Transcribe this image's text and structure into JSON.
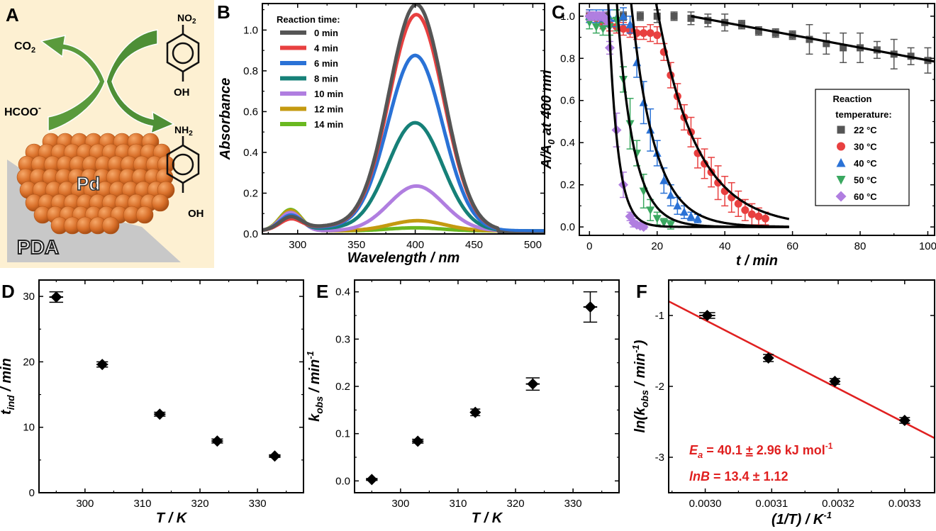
{
  "figure": {
    "panels": [
      "A",
      "B",
      "C",
      "D",
      "E",
      "F"
    ]
  },
  "schematic": {
    "letter": "A",
    "labels": {
      "co2": "CO",
      "co2_sub": "2",
      "formate": "HCOO",
      "formate_sup": "-",
      "nitro": "NO",
      "nitro_sub": "2",
      "amine": "NH",
      "amine_sub": "2",
      "oh_top": "OH",
      "oh_bottom": "OH",
      "pd": "Pd",
      "pda": "PDA"
    },
    "colors": {
      "background": "#fdf0d2",
      "arrow": "#5a9a3c",
      "sphere": "#d9702a",
      "substrate": "#bfbfbf"
    }
  },
  "chart_data": [
    {
      "panel": "B",
      "type": "line",
      "title": "",
      "xlabel": "Wavelength / nm",
      "ylabel": "Absorbance",
      "xlim": [
        270,
        510
      ],
      "ylim": [
        0,
        1.13
      ],
      "xticks": [
        300,
        350,
        400,
        450,
        500
      ],
      "yticks": [
        0.0,
        0.2,
        0.4,
        0.6,
        0.8,
        1.0
      ],
      "ytick_labels": [
        "0.0",
        "0.2",
        "0.4",
        "0.6",
        "0.8",
        "1.0"
      ],
      "legend_title": "Reaction time:",
      "legend_position": "top-left",
      "series": [
        {
          "name": "0 min",
          "color": "#555555",
          "peak": 1.11,
          "peak_x": 401,
          "shoulder300": 0.06
        },
        {
          "name": "4 min",
          "color": "#e84040",
          "peak": 1.06,
          "peak_x": 401,
          "shoulder300": 0.05
        },
        {
          "name": "6 min",
          "color": "#2a72d6",
          "peak": 0.86,
          "peak_x": 400,
          "shoulder300": 0.07
        },
        {
          "name": "8 min",
          "color": "#168078",
          "peak": 0.53,
          "peak_x": 400,
          "shoulder300": 0.07
        },
        {
          "name": "10 min",
          "color": "#b07ee0",
          "peak": 0.22,
          "peak_x": 401,
          "shoulder300": 0.09
        },
        {
          "name": "12 min",
          "color": "#c49a10",
          "peak": 0.05,
          "peak_x": 402,
          "shoulder300": 0.1
        },
        {
          "name": "14 min",
          "color": "#6ab820",
          "peak": 0.015,
          "peak_x": 400,
          "shoulder300": 0.105
        }
      ]
    },
    {
      "panel": "C",
      "type": "scatter",
      "xlabel": "t / min",
      "ylabel": "A/A0 at 400 nm",
      "xlim": [
        -3,
        102
      ],
      "ylim": [
        -0.04,
        1.06
      ],
      "xticks": [
        0,
        20,
        40,
        60,
        80,
        100
      ],
      "yticks": [
        0.0,
        0.2,
        0.4,
        0.6,
        0.8,
        1.0
      ],
      "ytick_labels": [
        "0.0",
        "0.2",
        "0.4",
        "0.6",
        "0.8",
        "1.0"
      ],
      "legend_title": [
        "Reaction",
        "temperature:"
      ],
      "legend_position": "right",
      "series": [
        {
          "name": "22 °C",
          "marker": "square",
          "color": "#555555",
          "x": [
            0,
            5,
            10,
            15,
            20,
            25,
            30,
            35,
            40,
            45,
            50,
            55,
            60,
            65,
            70,
            75,
            80,
            85,
            90,
            95,
            100
          ],
          "y": [
            1.0,
            1.0,
            1.0,
            1.0,
            1.0,
            1.0,
            0.99,
            0.98,
            0.97,
            0.96,
            0.93,
            0.92,
            0.91,
            0.89,
            0.87,
            0.85,
            0.85,
            0.84,
            0.82,
            0.81,
            0.79
          ],
          "err": [
            0.02,
            0.02,
            0.02,
            0.02,
            0.03,
            0.02,
            0.03,
            0.03,
            0.04,
            0.02,
            0.02,
            0.02,
            0.02,
            0.07,
            0.05,
            0.07,
            0.07,
            0.04,
            0.07,
            0.04,
            0.06
          ],
          "fit": {
            "type": "linear",
            "x0": 30,
            "x1": 102,
            "y0": 1.0,
            "y1": 0.785
          }
        },
        {
          "name": "30 °C",
          "marker": "circle",
          "color": "#e84040",
          "x": [
            0,
            2,
            4,
            6,
            8,
            10,
            12,
            14,
            16,
            18,
            20,
            22,
            24,
            26,
            28,
            30,
            32,
            34,
            36,
            38,
            40,
            42,
            44,
            46,
            48,
            50,
            52
          ],
          "y": [
            1.0,
            0.99,
            0.97,
            0.96,
            0.95,
            0.94,
            0.93,
            0.92,
            0.92,
            0.92,
            0.91,
            0.83,
            0.72,
            0.62,
            0.52,
            0.45,
            0.35,
            0.3,
            0.26,
            0.21,
            0.17,
            0.14,
            0.11,
            0.08,
            0.06,
            0.05,
            0.04
          ],
          "err": [
            0.03,
            0.03,
            0.03,
            0.03,
            0.03,
            0.03,
            0.03,
            0.03,
            0.03,
            0.04,
            0.04,
            0.04,
            0.06,
            0.06,
            0.06,
            0.07,
            0.07,
            0.07,
            0.07,
            0.08,
            0.07,
            0.07,
            0.06,
            0.05,
            0.05,
            0.04,
            0.03
          ],
          "fit": {
            "type": "exp",
            "t0": 19.5,
            "k": 0.085,
            "tmax": 59
          }
        },
        {
          "name": "40 °C",
          "marker": "triangle-up",
          "color": "#2a72d6",
          "x": [
            0,
            2,
            4,
            6,
            8,
            10,
            12,
            14,
            16,
            18,
            20,
            22,
            24,
            26,
            28,
            30,
            32
          ],
          "y": [
            1.0,
            1.0,
            0.99,
            0.99,
            0.99,
            1.0,
            0.96,
            0.78,
            0.59,
            0.46,
            0.35,
            0.22,
            0.15,
            0.1,
            0.07,
            0.05,
            0.04
          ],
          "err": [
            0.03,
            0.03,
            0.04,
            0.04,
            0.04,
            0.04,
            0.04,
            0.07,
            0.1,
            0.1,
            0.06,
            0.06,
            0.05,
            0.04,
            0.03,
            0.02,
            0.02
          ],
          "fit": {
            "type": "exp",
            "t0": 12.2,
            "k": 0.145,
            "tmax": 59
          }
        },
        {
          "name": "50 °C",
          "marker": "triangle-down",
          "color": "#3aa860",
          "x": [
            0,
            2,
            4,
            6,
            8,
            10,
            12,
            14,
            16,
            18,
            20,
            22,
            24
          ],
          "y": [
            0.97,
            0.95,
            0.94,
            0.95,
            0.98,
            0.7,
            0.49,
            0.35,
            0.17,
            0.08,
            0.04,
            0.02,
            0.01
          ],
          "err": [
            0.03,
            0.03,
            0.03,
            0.04,
            0.05,
            0.06,
            0.12,
            0.06,
            0.08,
            0.05,
            0.03,
            0.02,
            0.02
          ],
          "fit": {
            "type": "exp",
            "t0": 8.0,
            "k": 0.205,
            "tmax": 59
          }
        },
        {
          "name": "60 °C",
          "marker": "diamond",
          "color": "#b07ee0",
          "x": [
            0,
            1,
            2,
            3,
            4,
            5,
            6,
            8,
            10,
            12,
            13,
            14,
            15,
            16
          ],
          "y": [
            1.0,
            1.0,
            1.0,
            1.0,
            1.0,
            0.98,
            0.85,
            0.46,
            0.2,
            0.05,
            0.02,
            0.01,
            0.005,
            0.0
          ],
          "err": [
            0.02,
            0.02,
            0.02,
            0.02,
            0.02,
            0.02,
            0.03,
            0.08,
            0.06,
            0.02,
            0.02,
            0.01,
            0.01,
            0.01
          ],
          "fit": {
            "type": "exp",
            "t0": 5.5,
            "k": 0.37,
            "tmax": 59
          }
        }
      ]
    },
    {
      "panel": "D",
      "type": "scatter",
      "xlabel": "T / K",
      "ylabel": "t_ind / min",
      "ylabel_main": "t",
      "ylabel_sub": "ind",
      "ylabel_rest": " / min",
      "xlim": [
        292,
        338
      ],
      "ylim": [
        0,
        32.5
      ],
      "xticks": [
        300,
        310,
        320,
        330
      ],
      "yticks": [
        0,
        10,
        20,
        30
      ],
      "series": [
        {
          "name": "t_ind",
          "marker": "diamond",
          "color": "#000000",
          "x": [
            295,
            303,
            313,
            323,
            333
          ],
          "y": [
            29.9,
            19.6,
            12.0,
            7.9,
            5.6
          ],
          "xerr": [
            1.2,
            1.0,
            1.0,
            1.0,
            1.0
          ],
          "yerr": [
            0.8,
            0.4,
            0.3,
            0.3,
            0.2
          ]
        }
      ]
    },
    {
      "panel": "E",
      "type": "scatter",
      "xlabel": "T / K",
      "ylabel": "k_obs / min^-1",
      "ylabel_main": "k",
      "ylabel_sub": "obs",
      "ylabel_rest": " / min",
      "ylabel_sup": "-1",
      "xlim": [
        292,
        338
      ],
      "ylim": [
        -0.025,
        0.425
      ],
      "xticks": [
        300,
        310,
        320,
        330
      ],
      "yticks": [
        0.0,
        0.1,
        0.2,
        0.3,
        0.4
      ],
      "ytick_labels": [
        "0.0",
        "0.1",
        "0.2",
        "0.3",
        "0.4"
      ],
      "series": [
        {
          "name": "k_obs",
          "marker": "diamond",
          "color": "#000000",
          "x": [
            295,
            303,
            313,
            323,
            333
          ],
          "y": [
            0.003,
            0.084,
            0.145,
            0.205,
            0.368
          ],
          "xerr": [
            1.0,
            1.0,
            0.8,
            1.2,
            1.2
          ],
          "yerr": [
            0.002,
            0.004,
            0.007,
            0.013,
            0.032
          ]
        }
      ]
    },
    {
      "panel": "F",
      "type": "scatter",
      "xlabel": "(1/T) / K^-1",
      "xlabel_main": "(1/T) / K",
      "xlabel_sup": "-1",
      "ylabel": "ln(k_obs / min^-1)",
      "ylabel_pre": "ln(k",
      "ylabel_sub": "obs",
      "ylabel_rest": " / min",
      "ylabel_sup": "-1",
      "ylabel_close": ")",
      "xlim": [
        0.002945,
        0.003345
      ],
      "ylim": [
        -3.5,
        -0.5
      ],
      "xticks": [
        0.003,
        0.0031,
        0.0032,
        0.0033
      ],
      "xtick_labels": [
        "0.0030",
        "0.0031",
        "0.0032",
        "0.0033"
      ],
      "yticks": [
        -1,
        -2,
        -3
      ],
      "ytick_labels": [
        "-1",
        "-2",
        "-3"
      ],
      "series": [
        {
          "name": "ln k_obs",
          "marker": "diamond",
          "color": "#000000",
          "x": [
            0.003003,
            0.003095,
            0.003195,
            0.0033
          ],
          "y": [
            -1.0,
            -1.6,
            -1.93,
            -2.48
          ],
          "xerr": [
            1.2e-05,
            8e-06,
            8e-06,
            8e-06
          ],
          "yerr": [
            0.04,
            0.05,
            0.04,
            0.04
          ]
        }
      ],
      "fit": {
        "type": "linear",
        "color": "#e02020",
        "x0": 0.002945,
        "y0": -0.8,
        "x1": 0.003345,
        "y1": -2.73
      },
      "annotations": {
        "ea_label": "E",
        "ea_sub": "a",
        "ea_value": " = 40.1 ",
        "pm": "±",
        "ea_err": " 2.96 kJ mol",
        "ea_sup": "-1",
        "lnb_label": "lnB",
        "lnb_value": " = 13.4 ",
        "lnb_err": " 1.12",
        "color": "#e02020"
      }
    }
  ]
}
